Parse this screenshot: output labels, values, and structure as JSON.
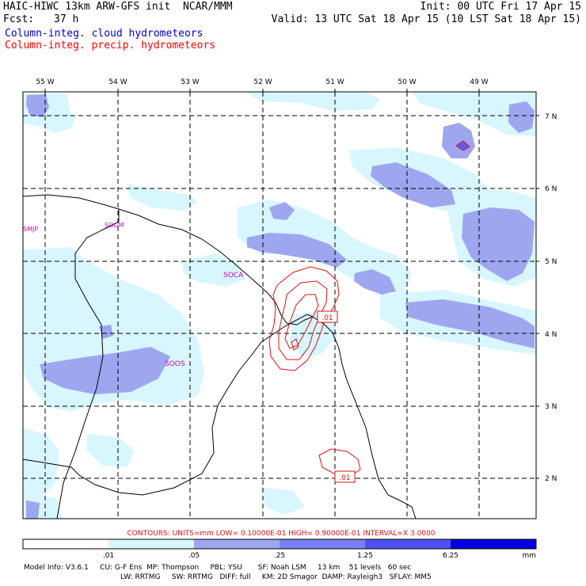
{
  "header": {
    "title": "HAIC-HIWC 13km ARW-GFS init  NCAR/MMM",
    "init": "Init: 00 UTC Fri 17 Apr 15",
    "fcst_label": "Fcst:",
    "fcst_value": "37 h",
    "valid": "Valid: 13 UTC Sat 18 Apr 15 (10 LST Sat 18 Apr 15)",
    "legend_cloud": "Column-integ. cloud hydrometeors",
    "legend_precip": "Column-integ. precip. hydrometeors",
    "colors": {
      "cloud": "#0000cc",
      "precip": "#ff0000"
    }
  },
  "map": {
    "lon_labels": [
      "55 W",
      "54 W",
      "53 W",
      "52 W",
      "51 W",
      "50 W",
      "49 W"
    ],
    "lat_labels": [
      "7 N",
      "6 N",
      "5 N",
      "4 N",
      "3 N",
      "2 N"
    ],
    "stations": [
      "SMJP",
      "SOGM",
      "SOCA",
      "SOOS"
    ],
    "contour_labels": [
      ".01",
      ".01"
    ],
    "colors": {
      "light": "#d8f6fe",
      "mid": "#9ea6f0",
      "dark": "#5a5ef4",
      "contour": "#e01010"
    }
  },
  "contour_info": "CONTOURS:  UNITS=mm  LOW= 0.10000E-01  HIGH= 0.90000E-01  INTERVAL=X  3.0000",
  "colorbar": {
    "ticks": [
      ".01",
      ".05",
      ".25",
      "1.25",
      "6.25"
    ],
    "unit": "mm",
    "colors": [
      "#ffffff",
      "#d8f6fe",
      "#9ea6f0",
      "#7a80f4",
      "#5050f4",
      "#0000e0"
    ]
  },
  "footer": {
    "line1": "Model Info: V3.6.1     CU: G-F Ens  MP: Thompson     PBL: YSU       SF: Noah LSM     13 km    51 levels   60 sec",
    "line2": "LW: RRTMG     SW: RRTMG   DIFF: full     KM: 2D Smagor  DAMP: Rayleigh3   SFLAY: MM5"
  }
}
